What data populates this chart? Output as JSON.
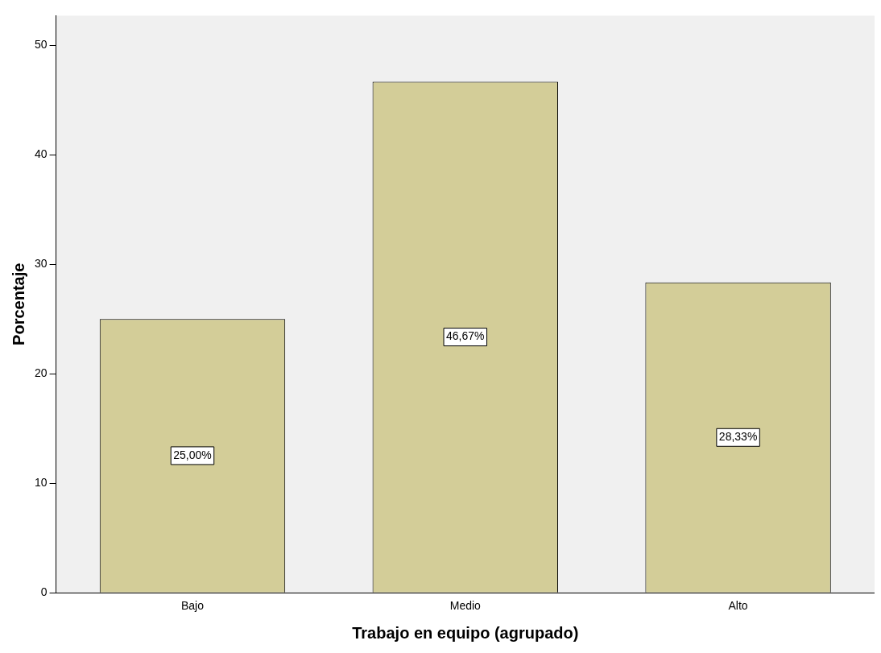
{
  "chart_data": {
    "type": "bar",
    "xlabel": "Trabajo en equipo (agrupado)",
    "ylabel": "Porcentaje",
    "categories": [
      "Bajo",
      "Medio",
      "Alto"
    ],
    "values": [
      25.0,
      46.67,
      28.33
    ],
    "value_labels": [
      "25,00%",
      "46,67%",
      "28,33%"
    ],
    "color": "#d3cd98",
    "ylim": [
      0,
      52.7
    ],
    "yticks": [
      0,
      10,
      20,
      30,
      40,
      50
    ],
    "grid": false
  }
}
